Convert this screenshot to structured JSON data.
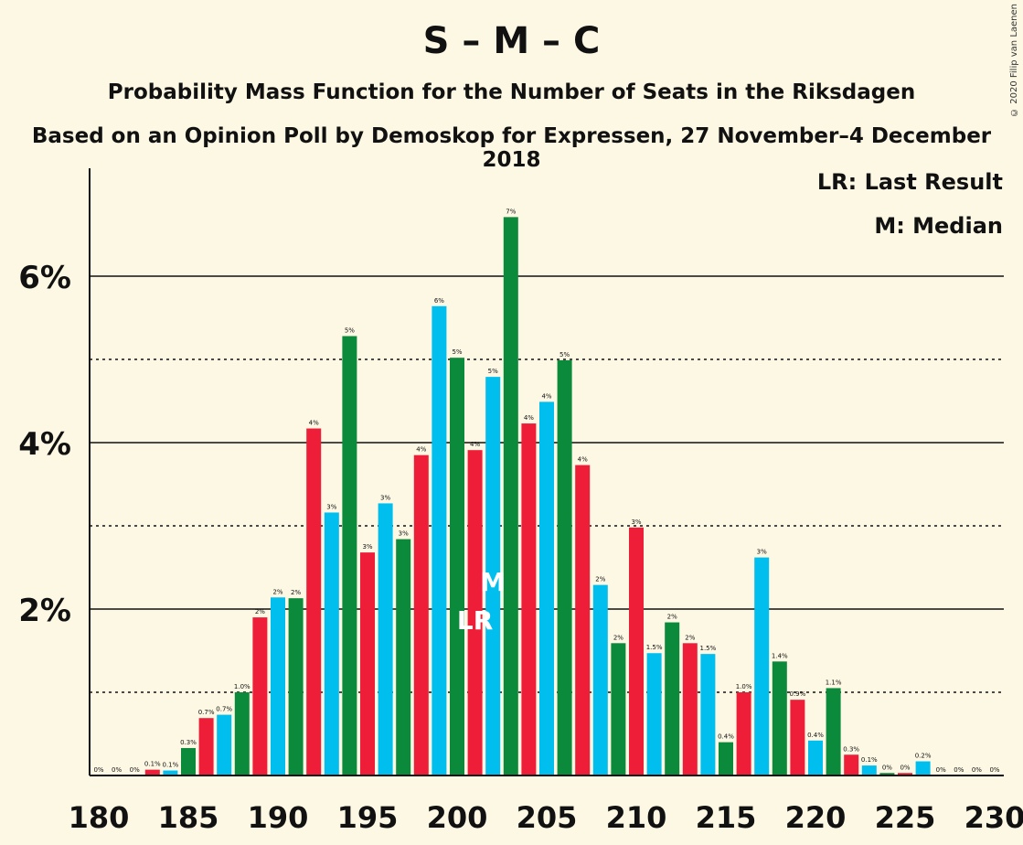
{
  "chart_data": {
    "type": "bar",
    "title": "S – M – C",
    "subtitle": "Probability Mass Function for the Number of Seats in the Riksdagen",
    "subtitle2": "Based on an Opinion Poll by Demoskop for Expressen, 27 November–4 December 2018",
    "credit": "© 2020 Filip van Laenen",
    "legend": [
      "LR: Last Result",
      "M: Median"
    ],
    "legend_position": "top-right",
    "xlim": [
      180,
      230
    ],
    "x_ticks": [
      "180",
      "185",
      "190",
      "195",
      "200",
      "205",
      "210",
      "215",
      "220",
      "225",
      "230"
    ],
    "ylim": [
      0,
      7.0
    ],
    "y_ticks": [
      {
        "value": 2,
        "label": "2%"
      },
      {
        "value": 4,
        "label": "4%"
      },
      {
        "value": 6,
        "label": "6%"
      }
    ],
    "grid": {
      "solid": [
        2,
        4,
        6
      ],
      "dotted": [
        1,
        3,
        5
      ]
    },
    "colors": [
      "#00bfee",
      "#0a8a3a",
      "#ee1e38"
    ],
    "last_result": 201,
    "median": 202,
    "bars": [
      {
        "seats": 180,
        "value": 0.0,
        "label": "0%"
      },
      {
        "seats": 181,
        "value": 0.0,
        "label": "0%"
      },
      {
        "seats": 182,
        "value": 0.0,
        "label": "0%"
      },
      {
        "seats": 183,
        "value": 0.07,
        "label": "0.1%"
      },
      {
        "seats": 184,
        "value": 0.06,
        "label": "0.1%"
      },
      {
        "seats": 185,
        "value": 0.33,
        "label": "0.3%"
      },
      {
        "seats": 186,
        "value": 0.69,
        "label": "0.7%"
      },
      {
        "seats": 187,
        "value": 0.73,
        "label": "0.7%"
      },
      {
        "seats": 188,
        "value": 1.0,
        "label": "1.0%"
      },
      {
        "seats": 189,
        "value": 1.9,
        "label": "2%"
      },
      {
        "seats": 190,
        "value": 2.14,
        "label": "2%"
      },
      {
        "seats": 191,
        "value": 2.13,
        "label": "2%"
      },
      {
        "seats": 192,
        "value": 4.17,
        "label": "4%"
      },
      {
        "seats": 193,
        "value": 3.16,
        "label": "3%"
      },
      {
        "seats": 194,
        "value": 5.28,
        "label": "5%"
      },
      {
        "seats": 195,
        "value": 2.68,
        "label": "3%"
      },
      {
        "seats": 196,
        "value": 3.27,
        "label": "3%"
      },
      {
        "seats": 197,
        "value": 2.84,
        "label": "3%"
      },
      {
        "seats": 198,
        "value": 3.85,
        "label": "4%"
      },
      {
        "seats": 199,
        "value": 5.64,
        "label": "6%"
      },
      {
        "seats": 200,
        "value": 5.02,
        "label": "5%"
      },
      {
        "seats": 201,
        "value": 3.91,
        "label": "4%"
      },
      {
        "seats": 202,
        "value": 4.79,
        "label": "5%"
      },
      {
        "seats": 203,
        "value": 6.71,
        "label": "7%"
      },
      {
        "seats": 204,
        "value": 4.23,
        "label": "4%"
      },
      {
        "seats": 205,
        "value": 4.49,
        "label": "4%"
      },
      {
        "seats": 206,
        "value": 4.99,
        "label": "5%"
      },
      {
        "seats": 207,
        "value": 3.73,
        "label": "4%"
      },
      {
        "seats": 208,
        "value": 2.29,
        "label": "2%"
      },
      {
        "seats": 209,
        "value": 1.59,
        "label": "2%"
      },
      {
        "seats": 210,
        "value": 2.98,
        "label": "3%"
      },
      {
        "seats": 211,
        "value": 1.47,
        "label": "1.5%"
      },
      {
        "seats": 212,
        "value": 1.84,
        "label": "2%"
      },
      {
        "seats": 213,
        "value": 1.59,
        "label": "2%"
      },
      {
        "seats": 214,
        "value": 1.46,
        "label": "1.5%"
      },
      {
        "seats": 215,
        "value": 0.4,
        "label": "0.4%"
      },
      {
        "seats": 216,
        "value": 1.0,
        "label": "1.0%"
      },
      {
        "seats": 217,
        "value": 2.62,
        "label": "3%"
      },
      {
        "seats": 218,
        "value": 1.37,
        "label": "1.4%"
      },
      {
        "seats": 219,
        "value": 0.91,
        "label": "0.9%"
      },
      {
        "seats": 220,
        "value": 0.42,
        "label": "0.4%"
      },
      {
        "seats": 221,
        "value": 1.05,
        "label": "1.1%"
      },
      {
        "seats": 222,
        "value": 0.25,
        "label": "0.3%"
      },
      {
        "seats": 223,
        "value": 0.12,
        "label": "0.1%"
      },
      {
        "seats": 224,
        "value": 0.03,
        "label": "0%"
      },
      {
        "seats": 225,
        "value": 0.03,
        "label": "0%"
      },
      {
        "seats": 226,
        "value": 0.17,
        "label": "0.2%"
      },
      {
        "seats": 227,
        "value": 0.0,
        "label": "0%"
      },
      {
        "seats": 228,
        "value": 0.0,
        "label": "0%"
      },
      {
        "seats": 229,
        "value": 0.0,
        "label": "0%"
      },
      {
        "seats": 230,
        "value": 0.0,
        "label": "0%"
      }
    ],
    "marker_labels": {
      "last_result": "LR",
      "median": "M"
    }
  }
}
